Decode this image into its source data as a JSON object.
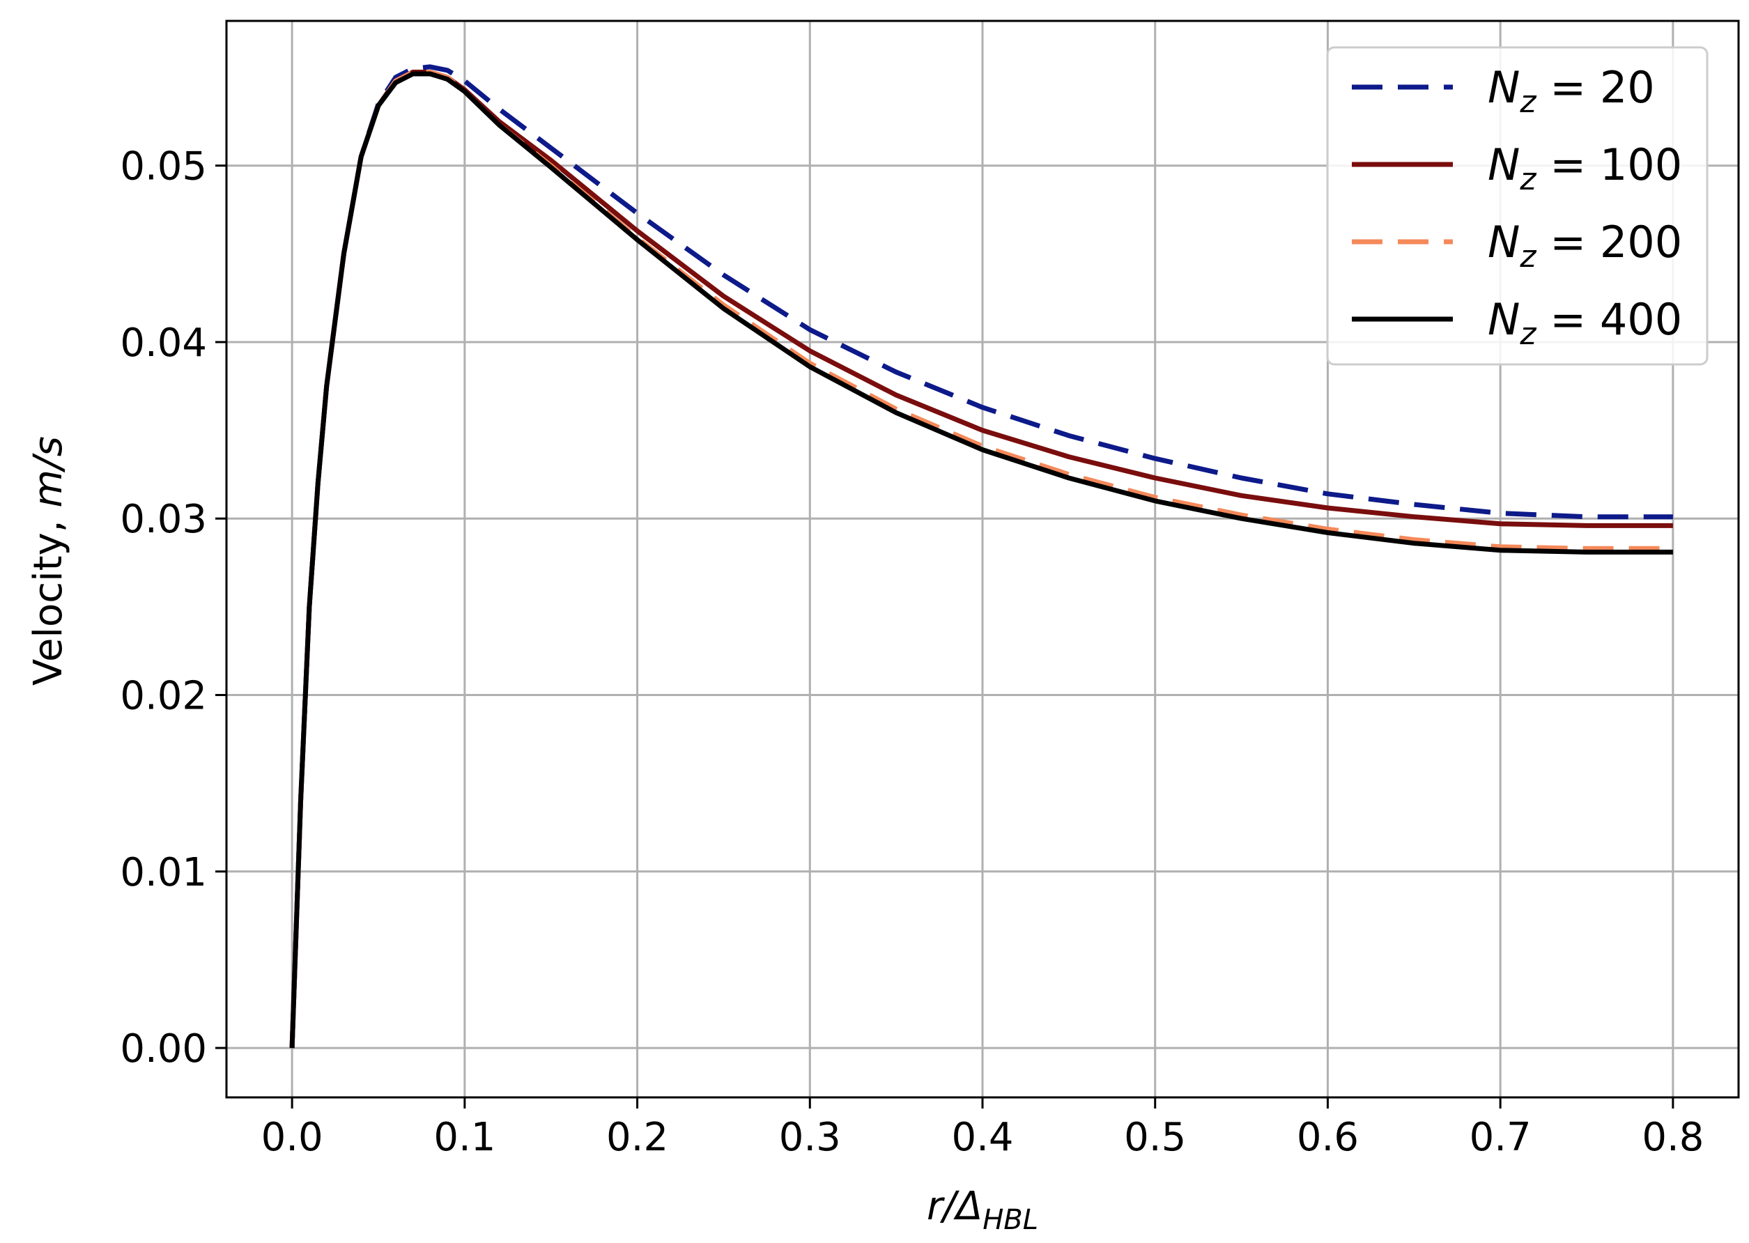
{
  "chart_data": {
    "type": "line",
    "xlabel_main": "r/Δ",
    "xlabel_sub": "HBL",
    "ylabel_main": "Velocity, ",
    "ylabel_unit": "m/s",
    "xlim": [
      -0.038,
      0.838
    ],
    "ylim": [
      -0.0028,
      0.0582
    ],
    "xticks": [
      0.0,
      0.1,
      0.2,
      0.3,
      0.4,
      0.5,
      0.6,
      0.7,
      0.8
    ],
    "xtick_labels": [
      "0.0",
      "0.1",
      "0.2",
      "0.3",
      "0.4",
      "0.5",
      "0.6",
      "0.7",
      "0.8"
    ],
    "yticks": [
      0.0,
      0.01,
      0.02,
      0.03,
      0.04,
      0.05
    ],
    "ytick_labels": [
      "0.00",
      "0.01",
      "0.02",
      "0.03",
      "0.04",
      "0.05"
    ],
    "grid": true,
    "legend_position": "top-right",
    "series": [
      {
        "legend_main": "N",
        "legend_sub": "z",
        "legend_value": " = 20",
        "color": "#0d1a8a",
        "dash": "dashed",
        "x": [
          0,
          0.005,
          0.01,
          0.015,
          0.02,
          0.03,
          0.04,
          0.05,
          0.06,
          0.07,
          0.08,
          0.09,
          0.1,
          0.12,
          0.15,
          0.2,
          0.25,
          0.3,
          0.35,
          0.4,
          0.45,
          0.5,
          0.55,
          0.6,
          0.65,
          0.7,
          0.75,
          0.8
        ],
        "y": [
          0,
          0.014,
          0.025,
          0.032,
          0.0375,
          0.045,
          0.0505,
          0.0535,
          0.055,
          0.0555,
          0.0556,
          0.0554,
          0.0548,
          0.0532,
          0.051,
          0.0473,
          0.0438,
          0.0407,
          0.0383,
          0.0363,
          0.0347,
          0.0334,
          0.0323,
          0.0314,
          0.0308,
          0.0303,
          0.0301,
          0.0301
        ]
      },
      {
        "legend_main": "N",
        "legend_sub": "z",
        "legend_value": " = 100",
        "color": "#7a0d0d",
        "dash": "solid",
        "x": [
          0,
          0.005,
          0.01,
          0.015,
          0.02,
          0.03,
          0.04,
          0.05,
          0.06,
          0.07,
          0.08,
          0.09,
          0.1,
          0.12,
          0.15,
          0.2,
          0.25,
          0.3,
          0.35,
          0.4,
          0.45,
          0.5,
          0.55,
          0.6,
          0.65,
          0.7,
          0.75,
          0.8
        ],
        "y": [
          0,
          0.014,
          0.025,
          0.032,
          0.0375,
          0.045,
          0.0505,
          0.0534,
          0.0548,
          0.0553,
          0.0553,
          0.055,
          0.0543,
          0.0525,
          0.0503,
          0.0463,
          0.0426,
          0.0395,
          0.037,
          0.035,
          0.0335,
          0.0323,
          0.0313,
          0.0306,
          0.0301,
          0.0297,
          0.0296,
          0.0296
        ]
      },
      {
        "legend_main": "N",
        "legend_sub": "z",
        "legend_value": " = 200",
        "color": "#f5895a",
        "dash": "dashed",
        "x": [
          0,
          0.005,
          0.01,
          0.015,
          0.02,
          0.03,
          0.04,
          0.05,
          0.06,
          0.07,
          0.08,
          0.09,
          0.1,
          0.12,
          0.15,
          0.2,
          0.25,
          0.3,
          0.35,
          0.4,
          0.45,
          0.5,
          0.55,
          0.6,
          0.65,
          0.7,
          0.75,
          0.8
        ],
        "y": [
          0,
          0.014,
          0.025,
          0.032,
          0.0375,
          0.045,
          0.0505,
          0.0534,
          0.0548,
          0.0553,
          0.0553,
          0.055,
          0.0542,
          0.0523,
          0.05,
          0.0459,
          0.0421,
          0.0388,
          0.0362,
          0.0341,
          0.0325,
          0.0312,
          0.0302,
          0.0294,
          0.0288,
          0.0284,
          0.0283,
          0.0283
        ]
      },
      {
        "legend_main": "N",
        "legend_sub": "z",
        "legend_value": " = 400",
        "color": "#000000",
        "dash": "solid",
        "x": [
          0,
          0.005,
          0.01,
          0.015,
          0.02,
          0.03,
          0.04,
          0.05,
          0.06,
          0.07,
          0.08,
          0.09,
          0.1,
          0.12,
          0.15,
          0.2,
          0.25,
          0.3,
          0.35,
          0.4,
          0.45,
          0.5,
          0.55,
          0.6,
          0.65,
          0.7,
          0.75,
          0.8
        ],
        "y": [
          0,
          0.014,
          0.025,
          0.032,
          0.0375,
          0.045,
          0.0505,
          0.0534,
          0.0547,
          0.0552,
          0.0552,
          0.0549,
          0.0542,
          0.0523,
          0.0499,
          0.0458,
          0.0419,
          0.0386,
          0.036,
          0.0339,
          0.0323,
          0.031,
          0.03,
          0.0292,
          0.0286,
          0.0282,
          0.0281,
          0.0281
        ]
      }
    ]
  }
}
